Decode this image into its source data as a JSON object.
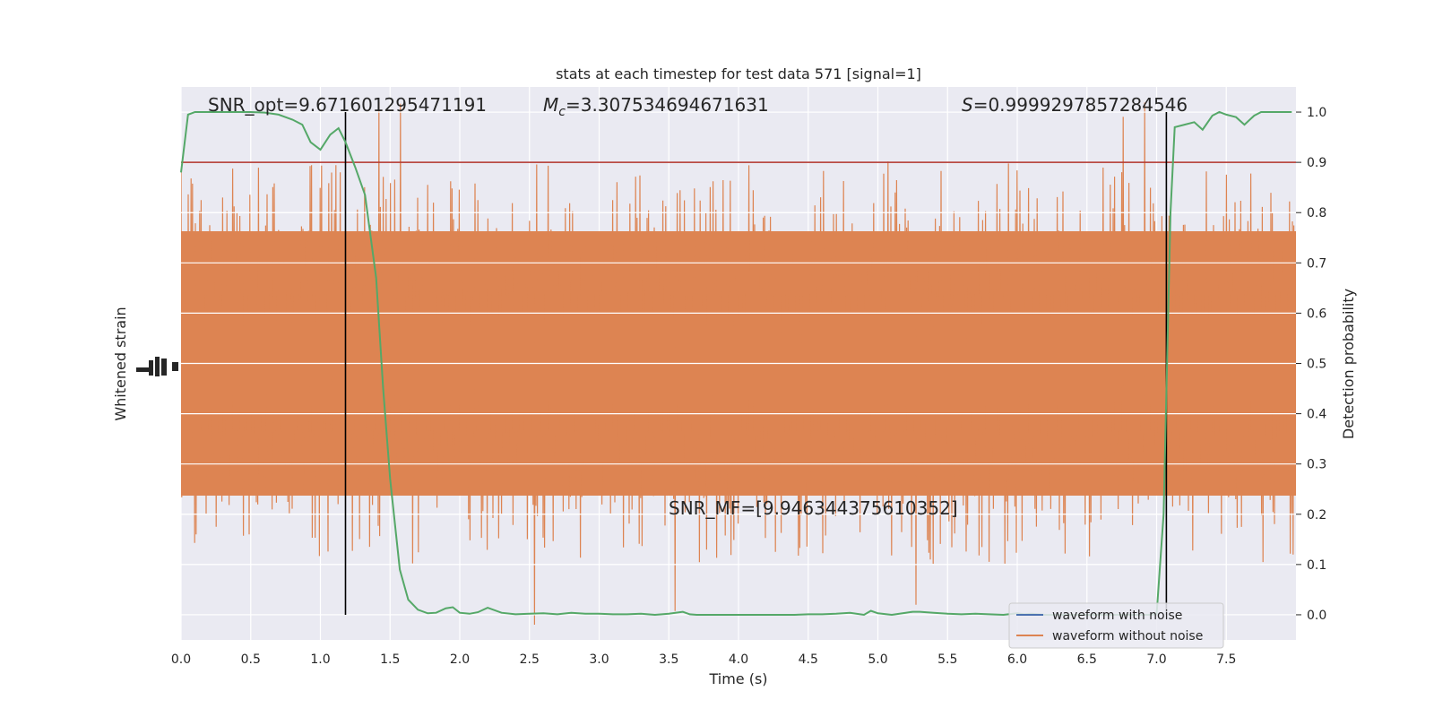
{
  "chart_data": {
    "type": "line",
    "title": "stats at each timestep for test data 571 [signal=1]",
    "xlabel": "Time (s)",
    "ylabel_left": "Whitened strain",
    "ylabel_right": "Detection probability",
    "xlim": [
      0.0,
      8.0
    ],
    "ylim_right": [
      -0.05,
      1.05
    ],
    "x_ticks": [
      "0.0",
      "0.5",
      "1.0",
      "1.5",
      "2.0",
      "2.5",
      "3.0",
      "3.5",
      "4.0",
      "4.5",
      "5.0",
      "5.5",
      "6.0",
      "6.5",
      "7.0",
      "7.5"
    ],
    "y_right_ticks": [
      "0.0",
      "0.1",
      "0.2",
      "0.3",
      "0.4",
      "0.5",
      "0.6",
      "0.7",
      "0.8",
      "0.9",
      "1.0"
    ],
    "grid": true,
    "annotations": {
      "snr_opt": "SNR_opt=9.671601295471191",
      "mc_symbol": "M",
      "mc_sub": "c",
      "mc_value": "=3.307534694671631",
      "s_symbol": "S",
      "s_value": "=0.9999297857284546",
      "snr_mf": "SNR_MF=[9.946344375610352]"
    },
    "vertical_lines_x": [
      1.18,
      7.07
    ],
    "threshold": 0.9,
    "legend": {
      "position": "lower right",
      "entries": [
        {
          "label": "waveform with noise",
          "color": "#4c72b0"
        },
        {
          "label": "waveform without noise",
          "color": "#dd8452"
        }
      ]
    },
    "series": [
      {
        "name": "detection probability",
        "color": "#55a868",
        "x": [
          0.0,
          0.05,
          0.1,
          0.2,
          0.3,
          0.4,
          0.5,
          0.6,
          0.7,
          0.8,
          0.87,
          0.93,
          1.0,
          1.07,
          1.13,
          1.18,
          1.25,
          1.32,
          1.4,
          1.45,
          1.5,
          1.57,
          1.63,
          1.7,
          1.77,
          1.83,
          1.9,
          1.95,
          2.0,
          2.07,
          2.13,
          2.2,
          2.3,
          2.4,
          2.5,
          2.6,
          2.7,
          2.8,
          2.9,
          3.0,
          3.1,
          3.2,
          3.3,
          3.4,
          3.5,
          3.6,
          3.65,
          3.7,
          3.8,
          3.9,
          4.0,
          4.1,
          4.2,
          4.3,
          4.4,
          4.5,
          4.6,
          4.7,
          4.8,
          4.9,
          4.95,
          5.0,
          5.1,
          5.2,
          5.25,
          5.3,
          5.4,
          5.5,
          5.6,
          5.7,
          5.8,
          5.9,
          6.0,
          6.05,
          6.1,
          6.2,
          6.3,
          6.4,
          6.5,
          6.6,
          6.7,
          6.8,
          6.9,
          6.95,
          7.0,
          7.05,
          7.1,
          7.13,
          7.2,
          7.27,
          7.33,
          7.4,
          7.45,
          7.5,
          7.57,
          7.63,
          7.7,
          7.75,
          7.8,
          7.9,
          7.97
        ],
        "y": [
          0.88,
          0.995,
          1.0,
          1.0,
          1.0,
          1.0,
          1.0,
          0.999,
          0.995,
          0.985,
          0.975,
          0.94,
          0.925,
          0.955,
          0.968,
          0.94,
          0.89,
          0.835,
          0.67,
          0.45,
          0.27,
          0.09,
          0.03,
          0.01,
          0.003,
          0.004,
          0.013,
          0.015,
          0.004,
          0.002,
          0.005,
          0.014,
          0.004,
          0.001,
          0.002,
          0.003,
          0.001,
          0.004,
          0.002,
          0.002,
          0.001,
          0.001,
          0.002,
          0.0,
          0.002,
          0.006,
          0.001,
          0.0,
          0.0,
          0.0,
          0.0,
          0.0,
          0.0,
          0.0,
          0.0,
          0.001,
          0.001,
          0.002,
          0.004,
          0.0,
          0.008,
          0.003,
          0.0,
          0.004,
          0.006,
          0.006,
          0.004,
          0.002,
          0.001,
          0.002,
          0.001,
          0.0,
          0.003,
          0.001,
          0.002,
          0.0,
          0.0,
          0.0,
          0.0,
          0.0,
          0.0,
          0.0,
          0.0,
          0.0,
          0.001,
          0.2,
          0.8,
          0.97,
          0.975,
          0.98,
          0.965,
          0.993,
          1.0,
          0.995,
          0.99,
          0.975,
          0.993,
          1.0,
          1.0,
          1.0,
          1.0
        ]
      }
    ]
  }
}
